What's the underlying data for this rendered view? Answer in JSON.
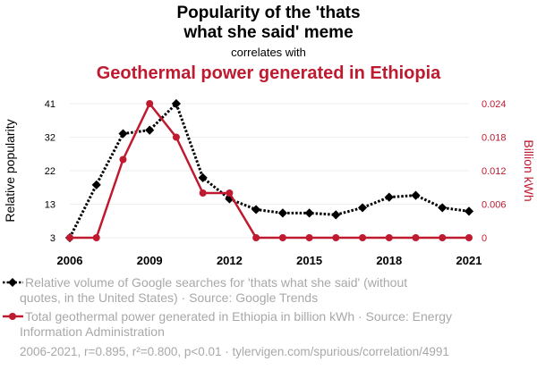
{
  "title_lines": [
    "Popularity of the 'thats",
    "what she said' meme"
  ],
  "subtitle": "correlates with",
  "second_title": "Geothermal power generated in Ethiopia",
  "chart_data": {
    "type": "line",
    "x": [
      2006,
      2007,
      2008,
      2009,
      2010,
      2011,
      2012,
      2013,
      2014,
      2015,
      2016,
      2017,
      2018,
      2019,
      2020,
      2021
    ],
    "x_ticks": [
      "2006",
      "2009",
      "2012",
      "2015",
      "2018",
      "2021"
    ],
    "xlim": [
      2006,
      2021
    ],
    "left_axis": {
      "label": "Relative popularity",
      "ticks": [
        "3",
        "13",
        "22",
        "32",
        "41"
      ],
      "ylim": [
        3,
        41
      ]
    },
    "right_axis": {
      "label": "Billion kWh",
      "ticks": [
        "0",
        "0.006",
        "0.012",
        "0.018",
        "0.024"
      ],
      "ylim": [
        0,
        0.024
      ]
    },
    "series": [
      {
        "axis": "left",
        "values": [
          3,
          18,
          32.5,
          33.5,
          41,
          20,
          14,
          11,
          10,
          10,
          9.5,
          11.5,
          14.5,
          15,
          11.5,
          10.5
        ],
        "legend": "Relative volume of Google searches for 'thats what she said' (without quotes, in the United States) · Source: Google Trends",
        "color": "#000000",
        "style": "dotted",
        "marker": "diamond"
      },
      {
        "axis": "right",
        "values": [
          0,
          0,
          0.014,
          0.024,
          0.018,
          0.008,
          0.008,
          0,
          0,
          0,
          0,
          0,
          0,
          0,
          0,
          0
        ],
        "legend": "Total geothermal power generated in Ethiopia in billion kWh · Source: Energy Information Administration",
        "color": "#bf1a2f",
        "style": "solid",
        "marker": "circle"
      }
    ],
    "grid": true
  },
  "legend": {
    "series1_lines": [
      "Relative volume of Google searches for 'thats what she said' (without",
      "quotes, in the United States) · Source: Google Trends"
    ],
    "series2_lines": [
      "Total geothermal power generated in Ethiopia in billion kWh · Source: Energy",
      "Information Administration"
    ]
  },
  "footer": "2006-2021, r=0.895, r²=0.800, p<0.01 · tylervigen.com/spurious/correlation/4991",
  "colors": {
    "series1": "#000000",
    "series2": "#bf1a2f",
    "grid": "#eeeeee",
    "legend_text": "#a8a8a8"
  }
}
